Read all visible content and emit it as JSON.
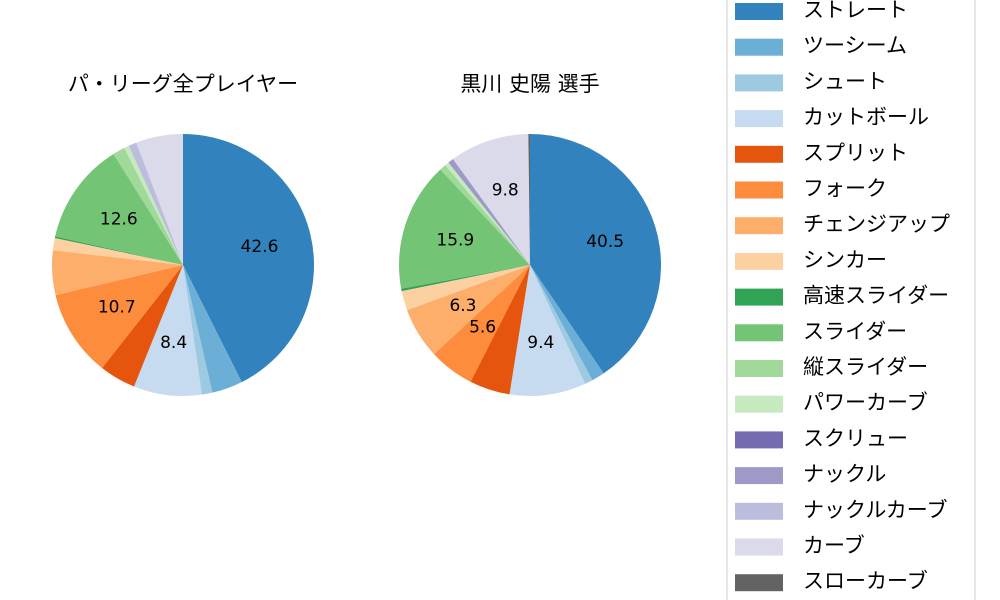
{
  "chart_data": [
    {
      "type": "pie",
      "title": "パ・リーグ全プレイヤー",
      "categories": [
        "ストレート",
        "ツーシーム",
        "シュート",
        "カットボール",
        "スプリット",
        "フォーク",
        "チェンジアップ",
        "シンカー",
        "高速スライダー",
        "スライダー",
        "縦スライダー",
        "パワーカーブ",
        "スクリュー",
        "ナックル",
        "ナックルカーブ",
        "カーブ",
        "スローカーブ"
      ],
      "colors": [
        "#3182bd",
        "#6baed6",
        "#9ecae1",
        "#c6dbef",
        "#e6550d",
        "#fd8d3c",
        "#fdae6b",
        "#fdd0a2",
        "#31a354",
        "#74c476",
        "#a1d99b",
        "#c7e9c0",
        "#756bb1",
        "#9e9ac8",
        "#bcbddc",
        "#dadaeb",
        "#636363"
      ],
      "values": [
        42.6,
        3.8,
        1.3,
        8.4,
        4.5,
        10.7,
        5.5,
        1.5,
        0.2,
        12.6,
        1.5,
        0.6,
        0,
        0,
        1.0,
        5.8,
        0
      ],
      "value_labels": [
        "42.6",
        null,
        null,
        "8.4",
        null,
        "10.7",
        null,
        null,
        null,
        "12.6",
        null,
        null,
        null,
        null,
        null,
        null,
        null
      ]
    },
    {
      "type": "pie",
      "title": "黒川 史陽  選手",
      "categories": [
        "ストレート",
        "ツーシーム",
        "シュート",
        "カットボール",
        "スプリット",
        "フォーク",
        "チェンジアップ",
        "シンカー",
        "高速スライダー",
        "スライダー",
        "縦スライダー",
        "パワーカーブ",
        "スクリュー",
        "ナックル",
        "ナックルカーブ",
        "カーブ",
        "スローカーブ"
      ],
      "colors": [
        "#3182bd",
        "#6baed6",
        "#9ecae1",
        "#c6dbef",
        "#e6550d",
        "#fd8d3c",
        "#fdae6b",
        "#fdd0a2",
        "#31a354",
        "#74c476",
        "#a1d99b",
        "#c7e9c0",
        "#756bb1",
        "#9e9ac8",
        "#bcbddc",
        "#dadaeb",
        "#636363"
      ],
      "values": [
        40.5,
        1.6,
        1.0,
        9.4,
        5.0,
        5.6,
        6.3,
        2.4,
        0.3,
        15.9,
        0.8,
        0.5,
        0,
        0.7,
        0,
        9.8,
        0.2
      ],
      "value_labels": [
        "40.5",
        null,
        null,
        "9.4",
        null,
        "5.6",
        "6.3",
        null,
        null,
        "15.9",
        null,
        null,
        null,
        null,
        null,
        "9.8",
        null
      ]
    }
  ]
}
